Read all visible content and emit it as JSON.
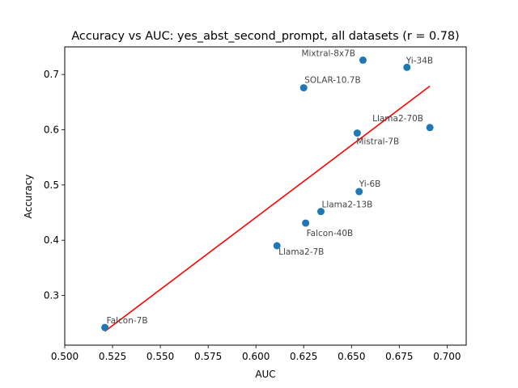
{
  "chart_data": {
    "type": "scatter",
    "title": "Accuracy vs AUC: yes_abst_second_prompt, all datasets (r = 0.78)",
    "xlabel": "AUC",
    "ylabel": "Accuracy",
    "xlim": [
      0.5,
      0.71
    ],
    "ylim": [
      0.21,
      0.75
    ],
    "xticks": [
      "0.500",
      "0.525",
      "0.550",
      "0.575",
      "0.600",
      "0.625",
      "0.650",
      "0.675",
      "0.700"
    ],
    "yticks": [
      "0.3",
      "0.4",
      "0.5",
      "0.6",
      "0.7"
    ],
    "grid": false,
    "points": [
      {
        "label": "Mixtral-8x7B",
        "x": 0.656,
        "y": 0.726
      },
      {
        "label": "Yi-34B",
        "x": 0.679,
        "y": 0.713
      },
      {
        "label": "SOLAR-10.7B",
        "x": 0.625,
        "y": 0.676
      },
      {
        "label": "Llama2-70B",
        "x": 0.691,
        "y": 0.604
      },
      {
        "label": "Mistral-7B",
        "x": 0.653,
        "y": 0.594
      },
      {
        "label": "Yi-6B",
        "x": 0.654,
        "y": 0.488
      },
      {
        "label": "Llama2-13B",
        "x": 0.634,
        "y": 0.452
      },
      {
        "label": "Falcon-40B",
        "x": 0.626,
        "y": 0.431
      },
      {
        "label": "Llama2-7B",
        "x": 0.611,
        "y": 0.39
      },
      {
        "label": "Falcon-7B",
        "x": 0.521,
        "y": 0.242
      }
    ],
    "fit_line": {
      "x": [
        0.521,
        0.691
      ],
      "y": [
        0.235,
        0.679
      ]
    },
    "colors": {
      "points": "#1f77b4",
      "fit_line": "#ff0000"
    }
  }
}
